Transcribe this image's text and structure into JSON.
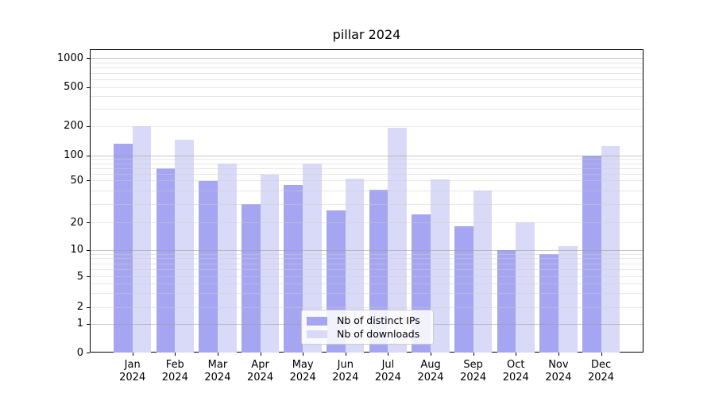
{
  "figure": {
    "title": "pillar 2024"
  },
  "chart_data": {
    "type": "bar",
    "title": "pillar 2024",
    "year": "2024",
    "categories": [
      "Jan",
      "Feb",
      "Mar",
      "Apr",
      "May",
      "Jun",
      "Jul",
      "Aug",
      "Sep",
      "Oct",
      "Nov",
      "Dec"
    ],
    "series": [
      {
        "name": "Nb of distinct IPs",
        "color": "#a5a5f1",
        "values": [
          130,
          70,
          49,
          30,
          45,
          26,
          41,
          24,
          18,
          10,
          9,
          100
        ]
      },
      {
        "name": "Nb of downloads",
        "color": "#d9d9f8",
        "values": [
          200,
          145,
          80,
          58,
          80,
          52,
          190,
          51,
          40,
          20,
          11,
          125
        ]
      }
    ],
    "yaxis": {
      "scale": "log-like",
      "range": [
        0,
        1000
      ],
      "ticks": [
        0,
        1,
        2,
        5,
        10,
        20,
        50,
        100,
        200,
        500,
        1000
      ],
      "tick_labels": [
        "0",
        "1",
        "2",
        "5",
        "10",
        "20",
        "50",
        "100",
        "200",
        "500",
        "1000"
      ]
    },
    "grid": "on",
    "legend": {
      "position": "lower center"
    }
  }
}
